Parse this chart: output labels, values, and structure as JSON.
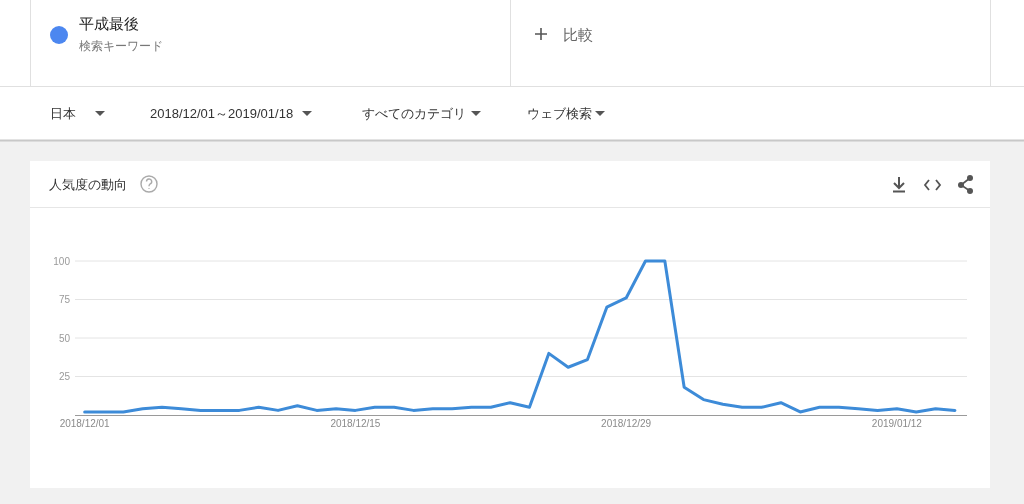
{
  "chart_data": {
    "type": "line",
    "title": "人気度の動向",
    "annotations": [
      "検索キーワード",
      "比較",
      "日本",
      "2018/12/01～2019/01/18",
      "すべてのカテゴリ",
      "ウェブ検索"
    ],
    "x": [
      "2018-12-01",
      "2018-12-02",
      "2018-12-03",
      "2018-12-04",
      "2018-12-05",
      "2018-12-06",
      "2018-12-07",
      "2018-12-08",
      "2018-12-09",
      "2018-12-10",
      "2018-12-11",
      "2018-12-12",
      "2018-12-13",
      "2018-12-14",
      "2018-12-15",
      "2018-12-16",
      "2018-12-17",
      "2018-12-18",
      "2018-12-19",
      "2018-12-20",
      "2018-12-21",
      "2018-12-22",
      "2018-12-23",
      "2018-12-24",
      "2018-12-25",
      "2018-12-26",
      "2018-12-27",
      "2018-12-28",
      "2018-12-29",
      "2018-12-30",
      "2018-12-31",
      "2019-01-01",
      "2019-01-02",
      "2019-01-03",
      "2019-01-04",
      "2019-01-05",
      "2019-01-06",
      "2019-01-07",
      "2019-01-08",
      "2019-01-09",
      "2019-01-10",
      "2019-01-11",
      "2019-01-12",
      "2019-01-13",
      "2019-01-14",
      "2019-01-15"
    ],
    "series": [
      {
        "name": "平成最後",
        "color": "#3d8bd8",
        "values": [
          2,
          2,
          2,
          4,
          5,
          4,
          3,
          3,
          3,
          5,
          3,
          6,
          3,
          4,
          3,
          5,
          5,
          3,
          4,
          4,
          5,
          5,
          8,
          5,
          40,
          31,
          36,
          70,
          76,
          100,
          100,
          18,
          10,
          7,
          5,
          5,
          8,
          2,
          5,
          5,
          4,
          3,
          4,
          2,
          4,
          3
        ]
      }
    ],
    "xlim": [
      "2018-11-30T12:00",
      "2019-01-15T15:00"
    ],
    "xticks": [
      {
        "value": "2018-12-01",
        "label": "2018/12/01"
      },
      {
        "value": "2018-12-15",
        "label": "2018/12/15"
      },
      {
        "value": "2018-12-29",
        "label": "2018/12/29"
      },
      {
        "value": "2019-01-12",
        "label": "2019/01/12"
      }
    ],
    "ylim": [
      0,
      100
    ],
    "yticks": [
      25,
      50,
      75,
      100
    ],
    "grid": "y",
    "legend": "top left",
    "marker": "none",
    "line_style": "solid"
  }
}
